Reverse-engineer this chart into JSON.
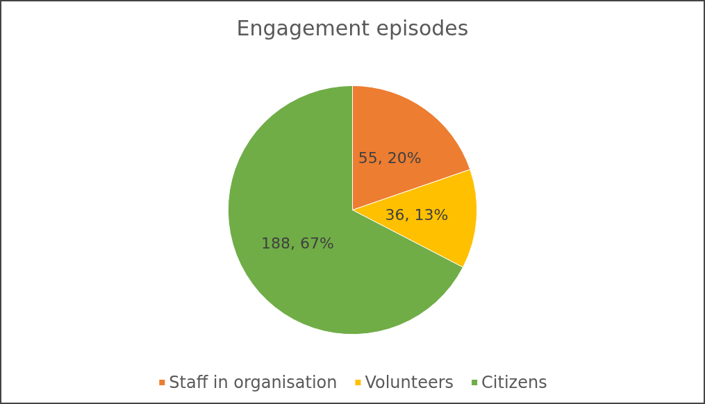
{
  "chart_data": {
    "type": "pie",
    "title": "Engagement episodes",
    "categories": [
      "Staff in organisation",
      "Volunteers",
      "Citizens"
    ],
    "values": [
      55,
      36,
      188
    ],
    "colors": [
      "#ed7d31",
      "#ffc000",
      "#70ad47"
    ],
    "value_labels": [
      "55, 20%",
      "36, 13%",
      "188, 67%"
    ],
    "legend": "bottom"
  }
}
